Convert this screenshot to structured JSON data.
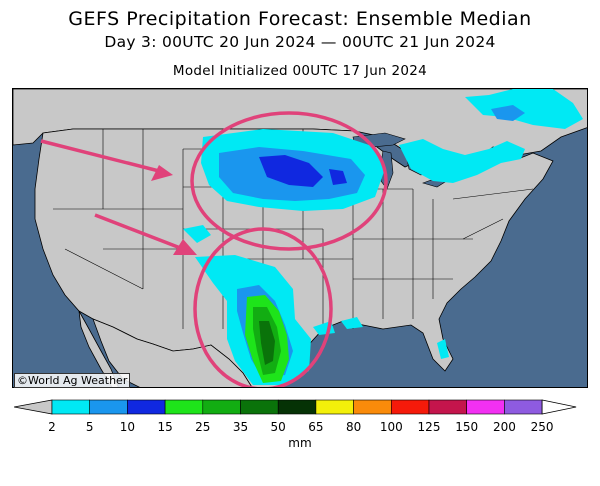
{
  "title": "GEFS Precipitation Forecast: Ensemble Median",
  "subtitle": "Day 3: 00UTC 20 Jun 2024 — 00UTC 21 Jun 2024",
  "model_init": "Model Initialized 00UTC 17 Jun 2024",
  "credit": "©World Ag Weather",
  "colorbar": {
    "unit": "mm",
    "ticks": [
      "2",
      "5",
      "10",
      "15",
      "25",
      "35",
      "50",
      "65",
      "80",
      "100",
      "125",
      "150",
      "200",
      "250"
    ],
    "colors": [
      "#00e9f4",
      "#1a96ee",
      "#1028e0",
      "#1ee41a",
      "#12ad12",
      "#0a730a",
      "#053205",
      "#f3f00a",
      "#fa8b0a",
      "#f51a0a",
      "#c4154c",
      "#f230f2",
      "#8e5be0"
    ],
    "under_color": "#c8c8c8",
    "over_color": "#ffffff"
  },
  "map": {
    "ocean_color": "#4a6b8f",
    "land_color": "#c8c8c8",
    "annotation_color": "#e0427a",
    "annotations": [
      "circle-northern-plains",
      "circle-texas",
      "arrow-northwest",
      "arrow-southwest"
    ]
  }
}
